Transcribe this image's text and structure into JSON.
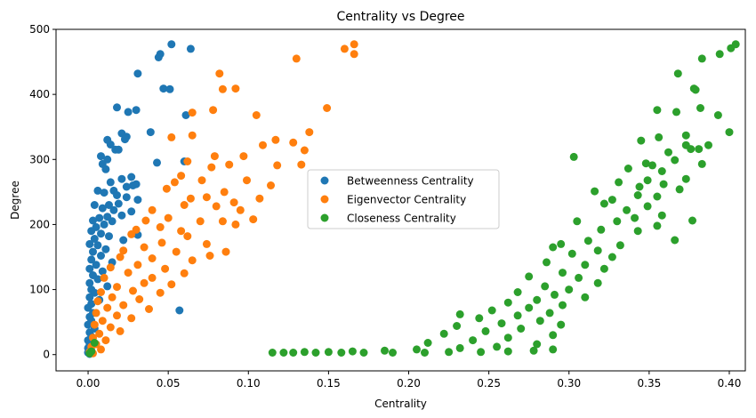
{
  "chart_data": {
    "type": "scatter",
    "title": "Centrality vs Degree",
    "xlabel": "Centrality",
    "ylabel": "Degree",
    "xlim": [
      -0.02,
      0.41
    ],
    "ylim": [
      -25,
      500
    ],
    "xticks": [
      0.0,
      0.05,
      0.1,
      0.15,
      0.2,
      0.25,
      0.3,
      0.35,
      0.4
    ],
    "xtick_labels": [
      "0.00",
      "0.05",
      "0.10",
      "0.15",
      "0.20",
      "0.25",
      "0.30",
      "0.35",
      "0.40"
    ],
    "yticks": [
      0,
      100,
      200,
      300,
      400,
      500
    ],
    "ytick_labels": [
      "0",
      "100",
      "200",
      "300",
      "400",
      "500"
    ],
    "grid": false,
    "legend_position": "center",
    "series": [
      {
        "name": "Betweenness Centrality",
        "color": "#1f77b4",
        "points": [
          [
            0.052,
            477
          ],
          [
            0.064,
            470
          ],
          [
            0.045,
            462
          ],
          [
            0.044,
            457
          ],
          [
            0.031,
            432
          ],
          [
            0.047,
            409
          ],
          [
            0.051,
            408
          ],
          [
            0.018,
            380
          ],
          [
            0.03,
            376
          ],
          [
            0.025,
            373
          ],
          [
            0.061,
            368
          ],
          [
            0.039,
            342
          ],
          [
            0.021,
            340
          ],
          [
            0.024,
            335
          ],
          [
            0.023,
            331
          ],
          [
            0.012,
            330
          ],
          [
            0.014,
            323
          ],
          [
            0.017,
            315
          ],
          [
            0.019,
            315
          ],
          [
            0.008,
            305
          ],
          [
            0.012,
            300
          ],
          [
            0.06,
            297
          ],
          [
            0.043,
            295
          ],
          [
            0.009,
            293
          ],
          [
            0.011,
            285
          ],
          [
            0.027,
            273
          ],
          [
            0.021,
            270
          ],
          [
            0.014,
            265
          ],
          [
            0.03,
            262
          ],
          [
            0.028,
            260
          ],
          [
            0.024,
            258
          ],
          [
            0.016,
            252
          ],
          [
            0.006,
            252
          ],
          [
            0.01,
            249
          ],
          [
            0.018,
            245
          ],
          [
            0.024,
            242
          ],
          [
            0.031,
            238
          ],
          [
            0.019,
            232
          ],
          [
            0.013,
            230
          ],
          [
            0.004,
            230
          ],
          [
            0.009,
            225
          ],
          [
            0.016,
            222
          ],
          [
            0.027,
            220
          ],
          [
            0.021,
            214
          ],
          [
            0.012,
            212
          ],
          [
            0.007,
            210
          ],
          [
            0.003,
            206
          ],
          [
            0.015,
            205
          ],
          [
            0.01,
            200
          ],
          [
            0.005,
            196
          ],
          [
            0.002,
            190
          ],
          [
            0.008,
            186
          ],
          [
            0.031,
            184
          ],
          [
            0.013,
            182
          ],
          [
            0.004,
            178
          ],
          [
            0.022,
            176
          ],
          [
            0.001,
            170
          ],
          [
            0.006,
            168
          ],
          [
            0.011,
            162
          ],
          [
            0.003,
            158
          ],
          [
            0.008,
            152
          ],
          [
            0.002,
            146
          ],
          [
            0.015,
            142
          ],
          [
            0.005,
            138
          ],
          [
            0.001,
            132
          ],
          [
            0.009,
            128
          ],
          [
            0.003,
            122
          ],
          [
            0.006,
            116
          ],
          [
            0.001,
            110
          ],
          [
            0.012,
            105
          ],
          [
            0.002,
            100
          ],
          [
            0.004,
            95
          ],
          [
            0.001,
            88
          ],
          [
            0.007,
            84
          ],
          [
            0.002,
            78
          ],
          [
            0.0,
            72
          ],
          [
            0.057,
            68
          ],
          [
            0.003,
            64
          ],
          [
            0.001,
            58
          ],
          [
            0.002,
            52
          ],
          [
            0.0,
            46
          ],
          [
            0.004,
            40
          ],
          [
            0.001,
            34
          ],
          [
            0.002,
            28
          ],
          [
            0.0,
            22
          ],
          [
            0.001,
            16
          ],
          [
            0.0,
            10
          ],
          [
            0.002,
            6
          ],
          [
            0.0,
            3
          ],
          [
            0.001,
            1
          ]
        ]
      },
      {
        "name": "Eigenvector Centrality",
        "color": "#ff7f0e",
        "points": [
          [
            0.166,
            477
          ],
          [
            0.16,
            470
          ],
          [
            0.166,
            462
          ],
          [
            0.13,
            455
          ],
          [
            0.082,
            432
          ],
          [
            0.084,
            408
          ],
          [
            0.092,
            409
          ],
          [
            0.149,
            379
          ],
          [
            0.078,
            376
          ],
          [
            0.065,
            372
          ],
          [
            0.105,
            368
          ],
          [
            0.065,
            337
          ],
          [
            0.052,
            334
          ],
          [
            0.138,
            342
          ],
          [
            0.128,
            326
          ],
          [
            0.117,
            330
          ],
          [
            0.109,
            322
          ],
          [
            0.135,
            314
          ],
          [
            0.062,
            297
          ],
          [
            0.079,
            305
          ],
          [
            0.088,
            292
          ],
          [
            0.097,
            305
          ],
          [
            0.118,
            291
          ],
          [
            0.133,
            292
          ],
          [
            0.077,
            288
          ],
          [
            0.058,
            275
          ],
          [
            0.054,
            265
          ],
          [
            0.071,
            268
          ],
          [
            0.085,
            250
          ],
          [
            0.099,
            268
          ],
          [
            0.114,
            260
          ],
          [
            0.049,
            255
          ],
          [
            0.064,
            240
          ],
          [
            0.074,
            242
          ],
          [
            0.091,
            234
          ],
          [
            0.107,
            240
          ],
          [
            0.06,
            230
          ],
          [
            0.04,
            222
          ],
          [
            0.08,
            228
          ],
          [
            0.095,
            222
          ],
          [
            0.05,
            210
          ],
          [
            0.036,
            206
          ],
          [
            0.07,
            205
          ],
          [
            0.084,
            205
          ],
          [
            0.103,
            208
          ],
          [
            0.045,
            196
          ],
          [
            0.03,
            192
          ],
          [
            0.058,
            190
          ],
          [
            0.092,
            200
          ],
          [
            0.027,
            185
          ],
          [
            0.062,
            182
          ],
          [
            0.074,
            170
          ],
          [
            0.086,
            158
          ],
          [
            0.076,
            152
          ],
          [
            0.046,
            172
          ],
          [
            0.035,
            165
          ],
          [
            0.022,
            160
          ],
          [
            0.055,
            158
          ],
          [
            0.04,
            148
          ],
          [
            0.02,
            150
          ],
          [
            0.065,
            145
          ],
          [
            0.031,
            138
          ],
          [
            0.048,
            132
          ],
          [
            0.014,
            134
          ],
          [
            0.06,
            125
          ],
          [
            0.025,
            126
          ],
          [
            0.04,
            118
          ],
          [
            0.01,
            118
          ],
          [
            0.035,
            110
          ],
          [
            0.052,
            108
          ],
          [
            0.018,
            104
          ],
          [
            0.028,
            98
          ],
          [
            0.008,
            96
          ],
          [
            0.045,
            95
          ],
          [
            0.015,
            88
          ],
          [
            0.032,
            85
          ],
          [
            0.006,
            82
          ],
          [
            0.022,
            76
          ],
          [
            0.012,
            72
          ],
          [
            0.038,
            70
          ],
          [
            0.005,
            64
          ],
          [
            0.018,
            60
          ],
          [
            0.027,
            56
          ],
          [
            0.009,
            52
          ],
          [
            0.004,
            46
          ],
          [
            0.014,
            42
          ],
          [
            0.02,
            36
          ],
          [
            0.007,
            32
          ],
          [
            0.003,
            26
          ],
          [
            0.011,
            22
          ],
          [
            0.005,
            16
          ],
          [
            0.002,
            12
          ],
          [
            0.008,
            8
          ],
          [
            0.001,
            4
          ],
          [
            0.003,
            2
          ]
        ]
      },
      {
        "name": "Closeness Centrality",
        "color": "#2ca02c",
        "points": [
          [
            0.404,
            477
          ],
          [
            0.401,
            471
          ],
          [
            0.394,
            462
          ],
          [
            0.383,
            455
          ],
          [
            0.368,
            432
          ],
          [
            0.378,
            409
          ],
          [
            0.379,
            407
          ],
          [
            0.382,
            379
          ],
          [
            0.355,
            376
          ],
          [
            0.367,
            373
          ],
          [
            0.393,
            368
          ],
          [
            0.4,
            342
          ],
          [
            0.373,
            337
          ],
          [
            0.356,
            334
          ],
          [
            0.373,
            322
          ],
          [
            0.387,
            322
          ],
          [
            0.345,
            329
          ],
          [
            0.376,
            316
          ],
          [
            0.381,
            316
          ],
          [
            0.362,
            311
          ],
          [
            0.303,
            304
          ],
          [
            0.348,
            294
          ],
          [
            0.366,
            299
          ],
          [
            0.383,
            293
          ],
          [
            0.352,
            291
          ],
          [
            0.337,
            286
          ],
          [
            0.358,
            282
          ],
          [
            0.373,
            270
          ],
          [
            0.349,
            268
          ],
          [
            0.331,
            265
          ],
          [
            0.359,
            262
          ],
          [
            0.344,
            258
          ],
          [
            0.369,
            254
          ],
          [
            0.316,
            251
          ],
          [
            0.343,
            245
          ],
          [
            0.355,
            243
          ],
          [
            0.327,
            238
          ],
          [
            0.322,
            232
          ],
          [
            0.349,
            228
          ],
          [
            0.336,
            222
          ],
          [
            0.358,
            214
          ],
          [
            0.341,
            210
          ],
          [
            0.377,
            206
          ],
          [
            0.33,
            205
          ],
          [
            0.305,
            205
          ],
          [
            0.355,
            198
          ],
          [
            0.32,
            192
          ],
          [
            0.343,
            190
          ],
          [
            0.366,
            176
          ],
          [
            0.312,
            175
          ],
          [
            0.295,
            170
          ],
          [
            0.332,
            168
          ],
          [
            0.29,
            165
          ],
          [
            0.318,
            160
          ],
          [
            0.302,
            155
          ],
          [
            0.327,
            150
          ],
          [
            0.286,
            142
          ],
          [
            0.31,
            138
          ],
          [
            0.322,
            132
          ],
          [
            0.296,
            126
          ],
          [
            0.275,
            120
          ],
          [
            0.306,
            118
          ],
          [
            0.318,
            110
          ],
          [
            0.285,
            105
          ],
          [
            0.3,
            100
          ],
          [
            0.268,
            96
          ],
          [
            0.291,
            92
          ],
          [
            0.31,
            88
          ],
          [
            0.28,
            84
          ],
          [
            0.262,
            80
          ],
          [
            0.296,
            76
          ],
          [
            0.275,
            72
          ],
          [
            0.252,
            68
          ],
          [
            0.232,
            62
          ],
          [
            0.288,
            64
          ],
          [
            0.268,
            60
          ],
          [
            0.244,
            56
          ],
          [
            0.282,
            52
          ],
          [
            0.258,
            48
          ],
          [
            0.23,
            44
          ],
          [
            0.295,
            46
          ],
          [
            0.27,
            40
          ],
          [
            0.248,
            36
          ],
          [
            0.222,
            32
          ],
          [
            0.29,
            30
          ],
          [
            0.262,
            26
          ],
          [
            0.24,
            22
          ],
          [
            0.212,
            18
          ],
          [
            0.28,
            16
          ],
          [
            0.255,
            12
          ],
          [
            0.232,
            10
          ],
          [
            0.205,
            8
          ],
          [
            0.185,
            6
          ],
          [
            0.165,
            5
          ],
          [
            0.15,
            4
          ],
          [
            0.135,
            4
          ],
          [
            0.122,
            3
          ],
          [
            0.115,
            3
          ],
          [
            0.128,
            3
          ],
          [
            0.142,
            3
          ],
          [
            0.158,
            3
          ],
          [
            0.172,
            3
          ],
          [
            0.19,
            3
          ],
          [
            0.21,
            3
          ],
          [
            0.225,
            4
          ],
          [
            0.245,
            4
          ],
          [
            0.262,
            5
          ],
          [
            0.278,
            6
          ],
          [
            0.29,
            8
          ],
          [
            0.002,
            5
          ],
          [
            0.004,
            18
          ],
          [
            0.001,
            2
          ]
        ]
      }
    ]
  }
}
